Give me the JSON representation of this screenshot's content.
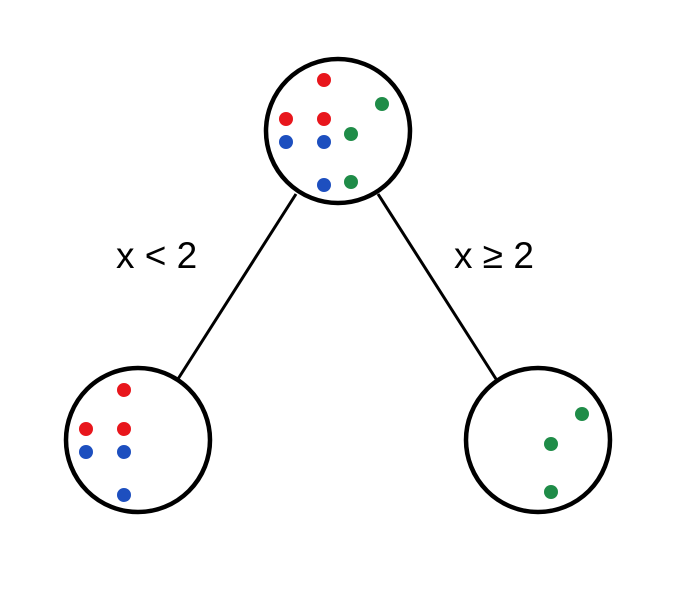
{
  "diagram": {
    "nodes": {
      "root": {
        "points": [
          {
            "color": "red"
          },
          {
            "color": "red"
          },
          {
            "color": "red"
          },
          {
            "color": "blue"
          },
          {
            "color": "blue"
          },
          {
            "color": "blue"
          },
          {
            "color": "green"
          },
          {
            "color": "green"
          },
          {
            "color": "green"
          }
        ]
      },
      "left": {
        "points": [
          {
            "color": "red"
          },
          {
            "color": "red"
          },
          {
            "color": "red"
          },
          {
            "color": "blue"
          },
          {
            "color": "blue"
          },
          {
            "color": "blue"
          }
        ]
      },
      "right": {
        "points": [
          {
            "color": "green"
          },
          {
            "color": "green"
          },
          {
            "color": "green"
          }
        ]
      }
    },
    "edges": {
      "left_label": "x < 2",
      "right_label": "x ≥ 2"
    }
  },
  "colors": {
    "red": "#e8161c",
    "blue": "#1d4fbf",
    "green": "#1f8c48",
    "stroke": "#000000"
  }
}
